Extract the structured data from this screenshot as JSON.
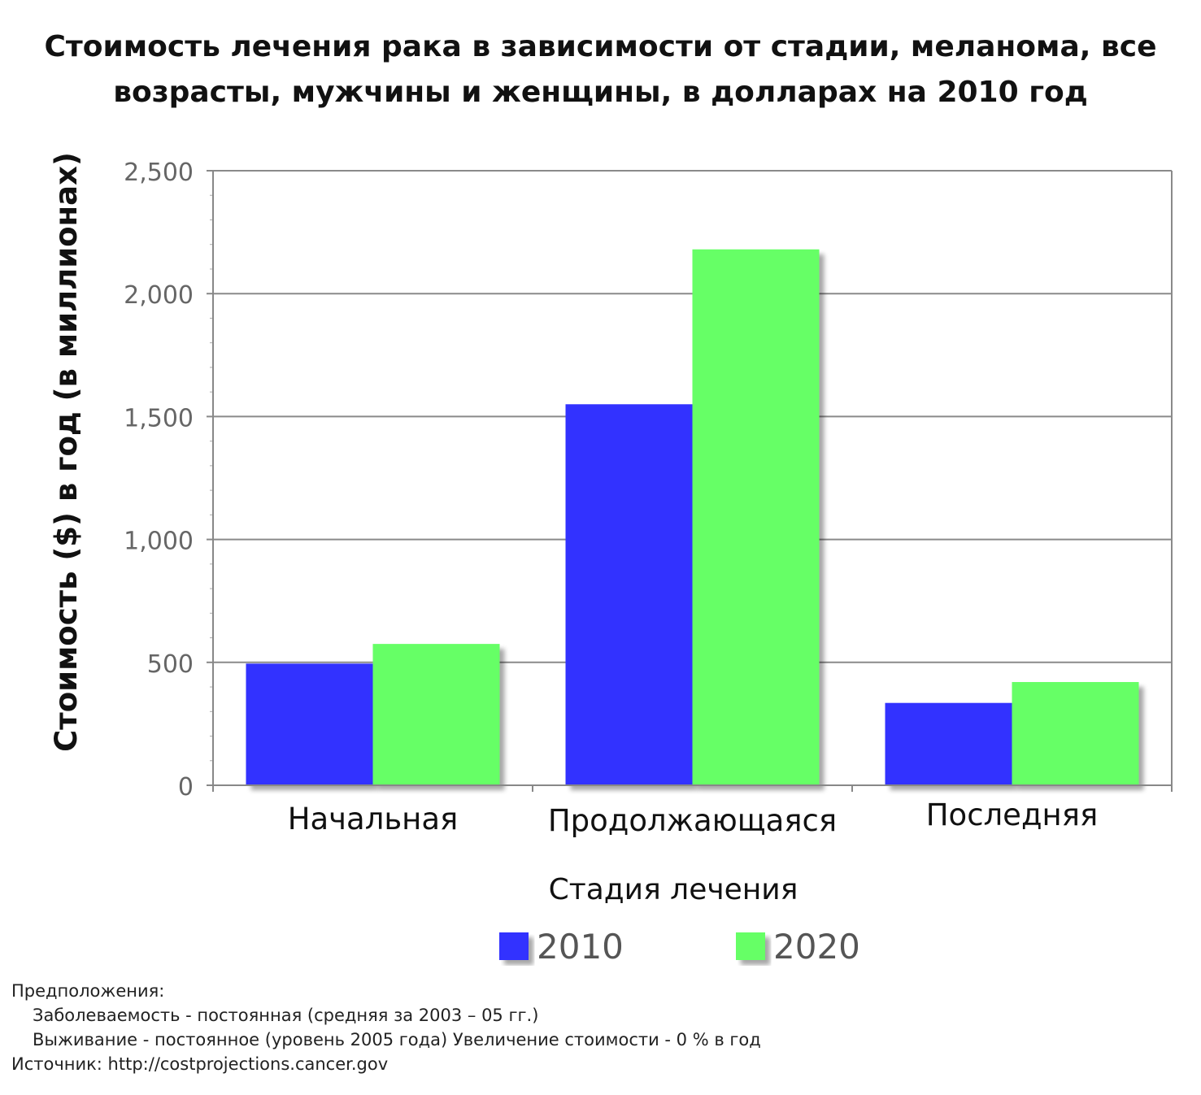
{
  "chart_data": {
    "type": "bar",
    "title_lines": [
      "Стоимость лечения рака в зависимости от стадии, меланома, все",
      "возрасты, мужчины и женщины, в долларах на 2010 год"
    ],
    "categories": [
      "Начальная",
      "Продолжающаяся",
      "Последняя"
    ],
    "series": [
      {
        "name": "2010",
        "color": "#3333ff",
        "values": [
          495,
          1550,
          335
        ]
      },
      {
        "name": "2020",
        "color": "#66ff66",
        "values": [
          575,
          2180,
          420
        ]
      }
    ],
    "xlabel": "Стадия лечения",
    "ylabel": "Стоимость ($) в год (в миллионах)",
    "ylim": [
      0,
      2500
    ],
    "yticks": [
      0,
      500,
      1000,
      1500,
      2000,
      2500
    ],
    "ytick_labels": [
      "0",
      "500",
      "1,000",
      "1,500",
      "2,000",
      "2,500"
    ],
    "grid": true,
    "legend_placement": "bottom-center"
  },
  "notes": {
    "heading": "Предположения:",
    "lines": [
      "Заболеваемость - постоянная (средняя за 2003 – 05 гг.)",
      "Выживание - постоянное (уровень 2005 года) Увеличение стоимости - 0 % в год"
    ],
    "source": "Источник: http://costprojections.cancer.gov"
  }
}
